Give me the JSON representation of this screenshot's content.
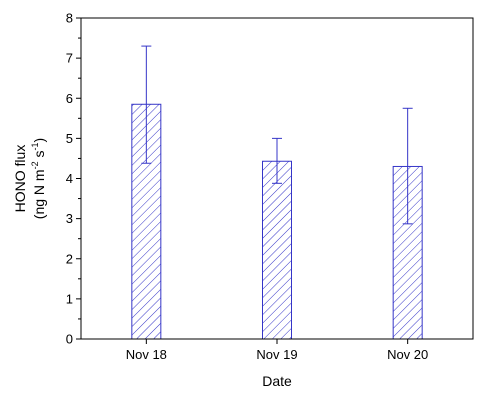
{
  "chart_data": {
    "type": "bar",
    "categories": [
      "Nov 18",
      "Nov 19",
      "Nov 20"
    ],
    "values": [
      5.85,
      4.43,
      4.3
    ],
    "error_upper": [
      7.3,
      5.0,
      5.75
    ],
    "error_lower": [
      4.38,
      3.88,
      2.87
    ],
    "ylim": [
      0,
      8
    ],
    "yticks": [
      "0",
      "1",
      "2",
      "3",
      "4",
      "5",
      "6",
      "7",
      "8"
    ],
    "xlabel": "Date",
    "ylabel_line1": "HONO flux",
    "ylabel_line2": "(ng N m",
    "ylabel_sup1": "-2",
    "ylabel_mid": " s",
    "ylabel_sup2": "-1",
    "ylabel_end": ")",
    "grid": false,
    "bar_color": "#3535c8",
    "hatch": "diagonal"
  }
}
